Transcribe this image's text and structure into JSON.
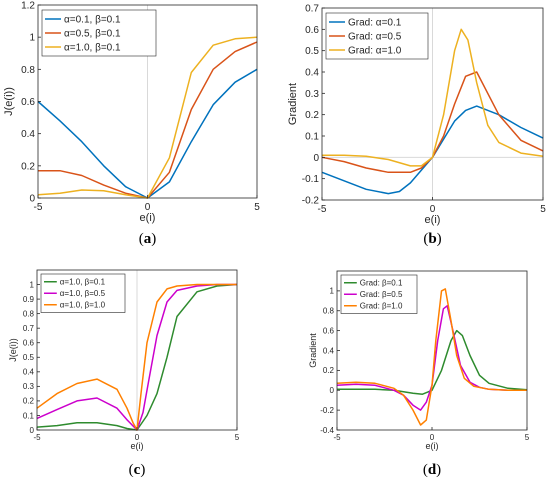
{
  "chart_data": [
    {
      "id": "a",
      "type": "line",
      "caption": "a",
      "xlabel": "e(i)",
      "ylabel": "J(e(i))",
      "xlim": [
        -5,
        5
      ],
      "ylim": [
        0,
        1.2
      ],
      "xticks": [
        -5,
        0,
        5
      ],
      "yticks": [
        0,
        0.2,
        0.4,
        0.6,
        0.8,
        1,
        1.2
      ],
      "grid": false,
      "zero_line": true,
      "legend_position": "top-left",
      "series": [
        {
          "name": "α=0.1, β=0.1",
          "color": "#0072BD",
          "x": [
            -5,
            -4,
            -3,
            -2,
            -1,
            0,
            1,
            2,
            3,
            4,
            5
          ],
          "y": [
            0.6,
            0.48,
            0.35,
            0.2,
            0.07,
            0,
            0.1,
            0.35,
            0.58,
            0.72,
            0.8
          ]
        },
        {
          "name": "α=0.5, β=0.1",
          "color": "#D95319",
          "x": [
            -5,
            -4,
            -3,
            -2,
            -1,
            0,
            1,
            2,
            3,
            4,
            5
          ],
          "y": [
            0.17,
            0.17,
            0.14,
            0.08,
            0.03,
            0,
            0.16,
            0.55,
            0.8,
            0.91,
            0.97
          ]
        },
        {
          "name": "α=1.0, β=0.1",
          "color": "#EDB120",
          "x": [
            -5,
            -4,
            -3,
            -2,
            -1,
            0,
            1,
            2,
            3,
            4,
            5
          ],
          "y": [
            0.02,
            0.03,
            0.05,
            0.045,
            0.02,
            0,
            0.25,
            0.78,
            0.95,
            0.99,
            1.0
          ]
        }
      ]
    },
    {
      "id": "b",
      "type": "line",
      "caption": "b",
      "xlabel": "e(i)",
      "ylabel": "Gradient",
      "xlim": [
        -5,
        5
      ],
      "ylim": [
        -0.2,
        0.7
      ],
      "xticks": [
        -5,
        0,
        5
      ],
      "yticks": [
        -0.2,
        -0.1,
        0,
        0.1,
        0.2,
        0.3,
        0.4,
        0.5,
        0.6,
        0.7
      ],
      "grid": false,
      "zero_line": true,
      "legend_position": "top-left",
      "series": [
        {
          "name": "Grad: α=0.1",
          "color": "#0072BD",
          "x": [
            -5,
            -4,
            -3,
            -2,
            -1.5,
            -1,
            0,
            1,
            1.5,
            2,
            3,
            4,
            5
          ],
          "y": [
            -0.07,
            -0.11,
            -0.15,
            -0.17,
            -0.16,
            -0.12,
            0,
            0.17,
            0.22,
            0.24,
            0.2,
            0.14,
            0.09
          ]
        },
        {
          "name": "Grad: α=0.5",
          "color": "#D95319",
          "x": [
            -5,
            -4,
            -3,
            -2,
            -1,
            -0.5,
            0,
            0.5,
            1,
            1.5,
            2,
            3,
            4,
            5
          ],
          "y": [
            0.0,
            -0.02,
            -0.05,
            -0.07,
            -0.07,
            -0.05,
            0,
            0.1,
            0.25,
            0.38,
            0.4,
            0.2,
            0.08,
            0.03
          ]
        },
        {
          "name": "Grad: α=1.0",
          "color": "#EDB120",
          "x": [
            -5,
            -4,
            -3,
            -2,
            -1,
            -0.5,
            0,
            0.5,
            1,
            1.3,
            1.6,
            2,
            2.5,
            3,
            4,
            5
          ],
          "y": [
            0.01,
            0.01,
            0.005,
            -0.01,
            -0.04,
            -0.04,
            0,
            0.2,
            0.5,
            0.6,
            0.55,
            0.35,
            0.15,
            0.07,
            0.02,
            0.005
          ]
        }
      ]
    },
    {
      "id": "c",
      "type": "line",
      "caption": "c",
      "xlabel": "e(i)",
      "ylabel": "J(e(i))",
      "xlim": [
        -5,
        5
      ],
      "ylim": [
        0,
        1.1
      ],
      "xticks": [
        -5,
        0,
        5
      ],
      "yticks": [
        0,
        0.1,
        0.2,
        0.3,
        0.4,
        0.5,
        0.6,
        0.7,
        0.8,
        0.9,
        1
      ],
      "grid": false,
      "zero_line": true,
      "legend_position": "top-left",
      "series": [
        {
          "name": "α=1.0, β=0.1",
          "color": "#2E8B2E",
          "x": [
            -5,
            -4,
            -3,
            -2,
            -1,
            -0.5,
            0,
            0.5,
            1,
            1.5,
            2,
            3,
            4,
            5
          ],
          "y": [
            0.02,
            0.03,
            0.05,
            0.05,
            0.03,
            0.01,
            0,
            0.1,
            0.25,
            0.5,
            0.78,
            0.95,
            0.99,
            1.0
          ]
        },
        {
          "name": "α=1.0, β=0.5",
          "color": "#CC00CC",
          "x": [
            -5,
            -4,
            -3,
            -2,
            -1,
            -0.5,
            0,
            0.3,
            0.6,
            1,
            1.5,
            2,
            3,
            4,
            5
          ],
          "y": [
            0.08,
            0.14,
            0.2,
            0.22,
            0.15,
            0.07,
            0,
            0.12,
            0.35,
            0.65,
            0.88,
            0.96,
            0.99,
            1.0,
            1.0
          ]
        },
        {
          "name": "α=1.0, β=1.0",
          "color": "#FF8000",
          "x": [
            -5,
            -4,
            -3,
            -2,
            -1,
            -0.5,
            -0.2,
            0,
            0.2,
            0.5,
            1,
            1.5,
            2,
            3,
            4,
            5
          ],
          "y": [
            0.15,
            0.25,
            0.32,
            0.35,
            0.28,
            0.15,
            0.05,
            0,
            0.25,
            0.6,
            0.88,
            0.97,
            0.99,
            1.0,
            1.0,
            1.0
          ]
        }
      ]
    },
    {
      "id": "d",
      "type": "line",
      "caption": "d",
      "xlabel": "e(i)",
      "ylabel": "Gradient",
      "xlim": [
        -5,
        5
      ],
      "ylim": [
        -0.4,
        1.2
      ],
      "xticks": [
        -5,
        0,
        5
      ],
      "yticks": [
        -0.4,
        -0.2,
        0,
        0.2,
        0.4,
        0.6,
        0.8,
        1
      ],
      "grid": false,
      "zero_line": false,
      "legend_position": "top-left",
      "series": [
        {
          "name": "Grad: β=0.1",
          "color": "#2E8B2E",
          "x": [
            -5,
            -4,
            -3,
            -2,
            -1,
            -0.5,
            0,
            0.5,
            1,
            1.3,
            1.6,
            2,
            2.5,
            3,
            4,
            5
          ],
          "y": [
            0.01,
            0.01,
            0.01,
            0.0,
            -0.03,
            -0.04,
            0.0,
            0.2,
            0.5,
            0.6,
            0.55,
            0.35,
            0.15,
            0.07,
            0.02,
            0.005
          ]
        },
        {
          "name": "Grad: β=0.5",
          "color": "#CC00CC",
          "x": [
            -5,
            -4,
            -3,
            -2,
            -1.5,
            -1,
            -0.6,
            -0.3,
            0,
            0.3,
            0.6,
            0.8,
            1.1,
            1.5,
            2,
            2.5,
            3,
            4,
            5
          ],
          "y": [
            0.05,
            0.06,
            0.05,
            0.0,
            -0.05,
            -0.15,
            -0.2,
            -0.12,
            0.05,
            0.5,
            0.82,
            0.85,
            0.6,
            0.25,
            0.08,
            0.03,
            0.01,
            0.0,
            0.0
          ]
        },
        {
          "name": "Grad: β=1.0",
          "color": "#FF8000",
          "x": [
            -5,
            -4,
            -3,
            -2,
            -1.5,
            -1,
            -0.6,
            -0.3,
            0,
            0.2,
            0.5,
            0.7,
            1,
            1.3,
            1.7,
            2.2,
            3,
            4,
            5
          ],
          "y": [
            0.07,
            0.08,
            0.07,
            0.02,
            -0.05,
            -0.2,
            -0.35,
            -0.3,
            0.05,
            0.5,
            1.0,
            1.02,
            0.7,
            0.35,
            0.12,
            0.04,
            0.01,
            0.0,
            0.0
          ]
        }
      ]
    }
  ]
}
